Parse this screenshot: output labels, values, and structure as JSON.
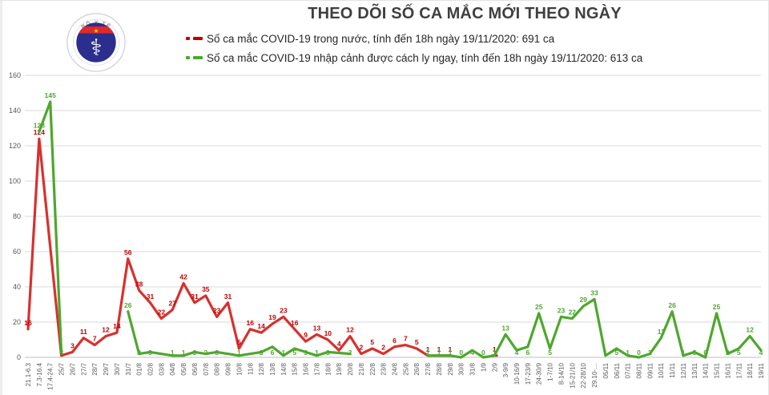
{
  "header": {
    "title": "THEO DÕI SỐ CA MẮC MỚI THEO NGÀY"
  },
  "logo": {
    "top_text": "BỘ Y TẾ",
    "bottom_text": "MINISTRY OF HEALTH",
    "symbol": "⚕",
    "colors": {
      "ring": "#c9ccd4",
      "inner": "#2b2e8c",
      "band": "#e02a2a",
      "star": "#ffd400"
    }
  },
  "legend": {
    "items": [
      {
        "label": "Số ca mắc COVID-19 trong nước, tính đến 18h ngày 19/11/2020: 691 ca",
        "color": "#c00000"
      },
      {
        "label": "Số ca mắc COVID-19 nhập cảnh được cách ly ngay, tính đến 18h ngày 19/11/2020: 613 ca",
        "color": "#4ea72e"
      }
    ]
  },
  "chart_data": {
    "type": "line",
    "title": "THEO DÕI SỐ CA MẮC MỚI THEO NGÀY",
    "xlabel": "",
    "ylabel": "",
    "ylim": [
      0,
      160
    ],
    "yticks": [
      0,
      20,
      40,
      60,
      80,
      100,
      120,
      140,
      160
    ],
    "grid": true,
    "legend_position": "top",
    "categories": [
      "21.1-6.3",
      "7.3-16.4",
      "17.4-24.7",
      "25/7",
      "26/7",
      "27/7",
      "28/7",
      "29/7",
      "30/7",
      "31/7",
      "01/8",
      "02/8",
      "03/8",
      "04/8",
      "05/8",
      "06/8",
      "07/8",
      "08/8",
      "09/8",
      "10/8",
      "11/8",
      "12/8",
      "13/8",
      "14/8",
      "15/8",
      "16/8",
      "17/8",
      "18/8",
      "19/8",
      "20/8",
      "21/8",
      "22/8",
      "23/8",
      "24/8",
      "25/8",
      "26/8",
      "27/8",
      "28/8",
      "29/8",
      "30/8",
      "31/8",
      "1/9",
      "2/9",
      "3-9/9",
      "10-16/9",
      "17-23/9",
      "24-30/9",
      "1-7/10",
      "8-14/10",
      "15-21/10",
      "22-28/10",
      "29.10-…",
      "05/11",
      "06/11",
      "07/11",
      "08/11",
      "09/11",
      "10/11",
      "11/11",
      "12/11",
      "13/11",
      "14/11",
      "15/11",
      "16/11",
      "17/11",
      "18/11",
      "19/11"
    ],
    "series": [
      {
        "name": "Số ca mắc COVID-19 trong nước",
        "color": "#d7312e",
        "label_color": "#c00000",
        "label_mode": "above",
        "values": [
          16,
          124,
          null,
          1,
          3,
          11,
          7,
          12,
          14,
          56,
          38,
          31,
          22,
          27,
          42,
          31,
          35,
          23,
          31,
          5,
          16,
          14,
          19,
          23,
          16,
          9,
          13,
          10,
          4,
          12,
          2,
          5,
          2,
          6,
          7,
          5,
          1,
          1,
          1,
          null,
          null,
          null,
          1,
          null,
          null,
          null,
          null,
          null,
          null,
          null,
          null,
          null,
          null,
          null,
          null,
          null,
          null,
          null,
          null,
          null,
          null,
          null,
          null,
          null,
          null,
          null,
          null
        ]
      },
      {
        "name": "Số ca mắc COVID-19 nhập cảnh được cách ly ngay",
        "color": "#4ea72e",
        "label_color": "#4ea72e",
        "label_mode": "auto",
        "values": [
          null,
          128,
          145,
          3,
          null,
          null,
          null,
          null,
          null,
          26,
          2,
          3,
          null,
          1,
          1,
          3,
          2,
          3,
          null,
          1,
          null,
          3,
          6,
          1,
          5,
          3,
          1,
          3,
          null,
          2,
          null,
          null,
          null,
          null,
          null,
          null,
          1,
          1,
          1,
          0,
          4,
          0,
          1,
          13,
          4,
          6,
          25,
          5,
          23,
          22,
          29,
          33,
          1,
          5,
          1,
          0,
          2,
          11,
          26,
          1,
          3,
          0,
          25,
          2,
          5,
          12,
          4
        ]
      }
    ]
  }
}
